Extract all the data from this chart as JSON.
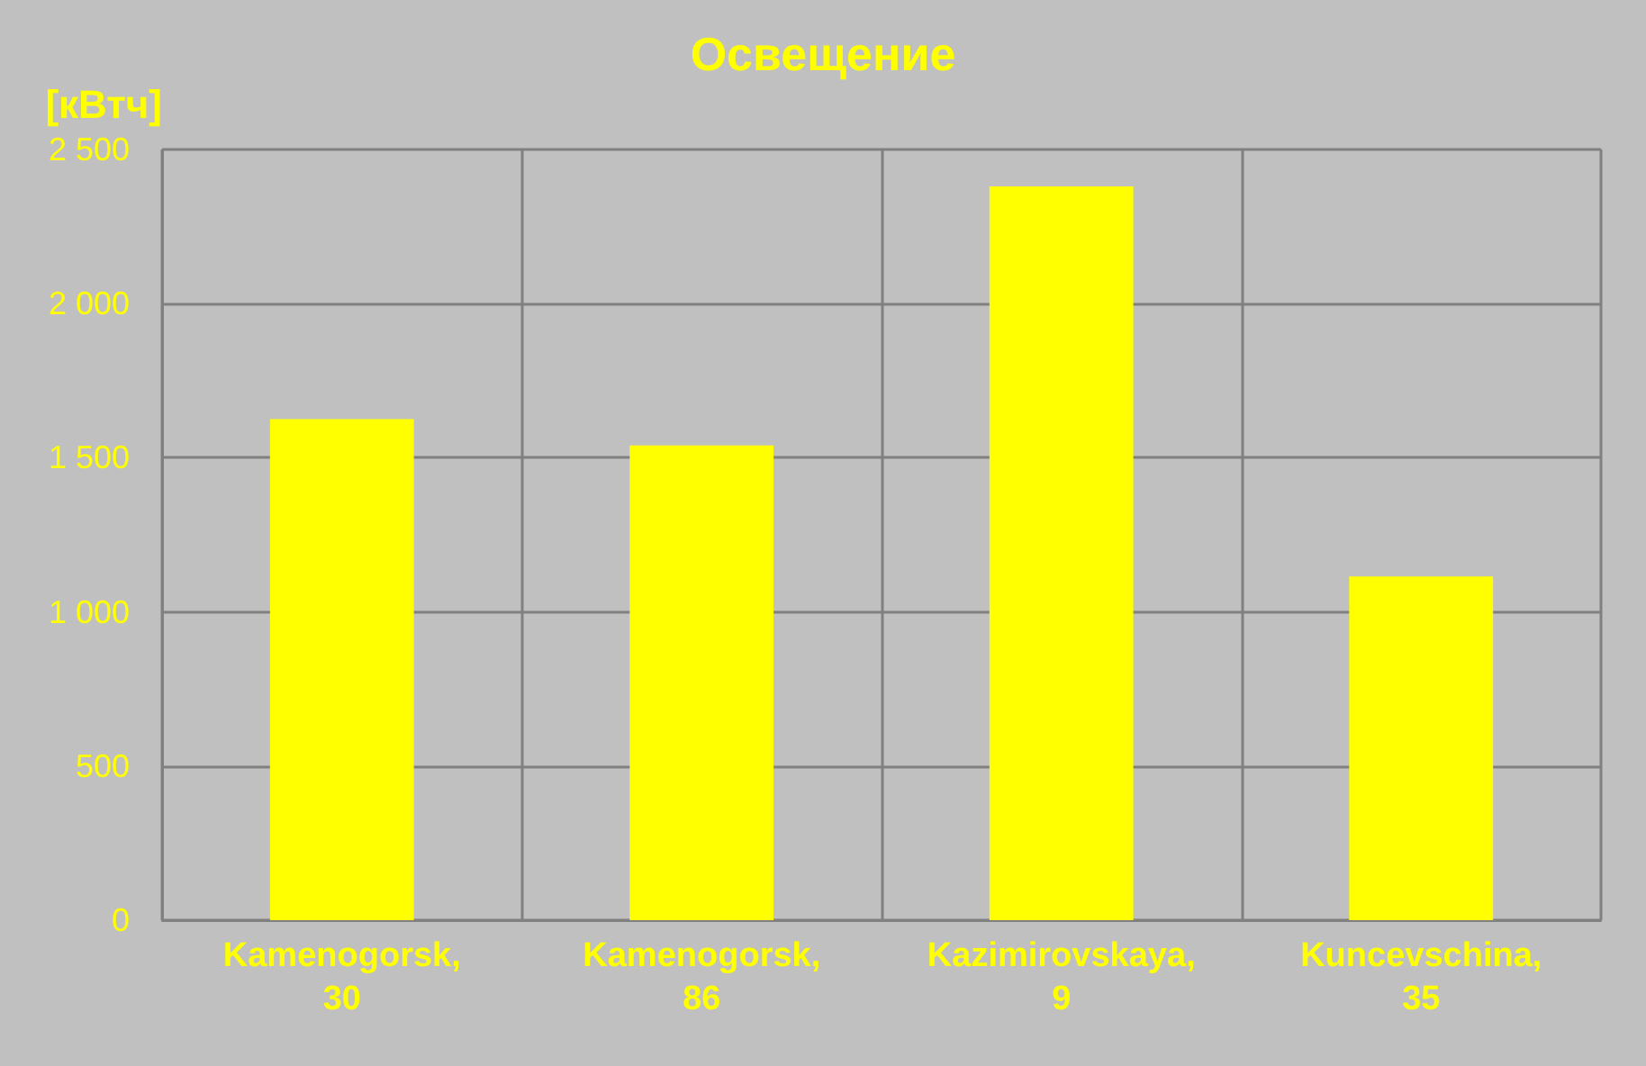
{
  "chart_data": {
    "type": "bar",
    "title": "Освещение",
    "ylabel": "[кВтч]",
    "categories": [
      "Kamenogorsk, 30",
      "Kamenogorsk, 86",
      "Kazimirovskaya, 9",
      "Kuncevschina, 35"
    ],
    "values": [
      1625,
      1540,
      2380,
      1115
    ],
    "color": "#ffff00",
    "ylim": [
      0,
      2500
    ],
    "yticks": [
      0,
      500,
      {
        "value": 1000,
        "label": "1 000"
      },
      {
        "value": 1500,
        "label": "1 500"
      },
      {
        "value": 2000,
        "label": "2 000"
      },
      {
        "value": 2500,
        "label": "2 500"
      }
    ],
    "grid": true
  }
}
